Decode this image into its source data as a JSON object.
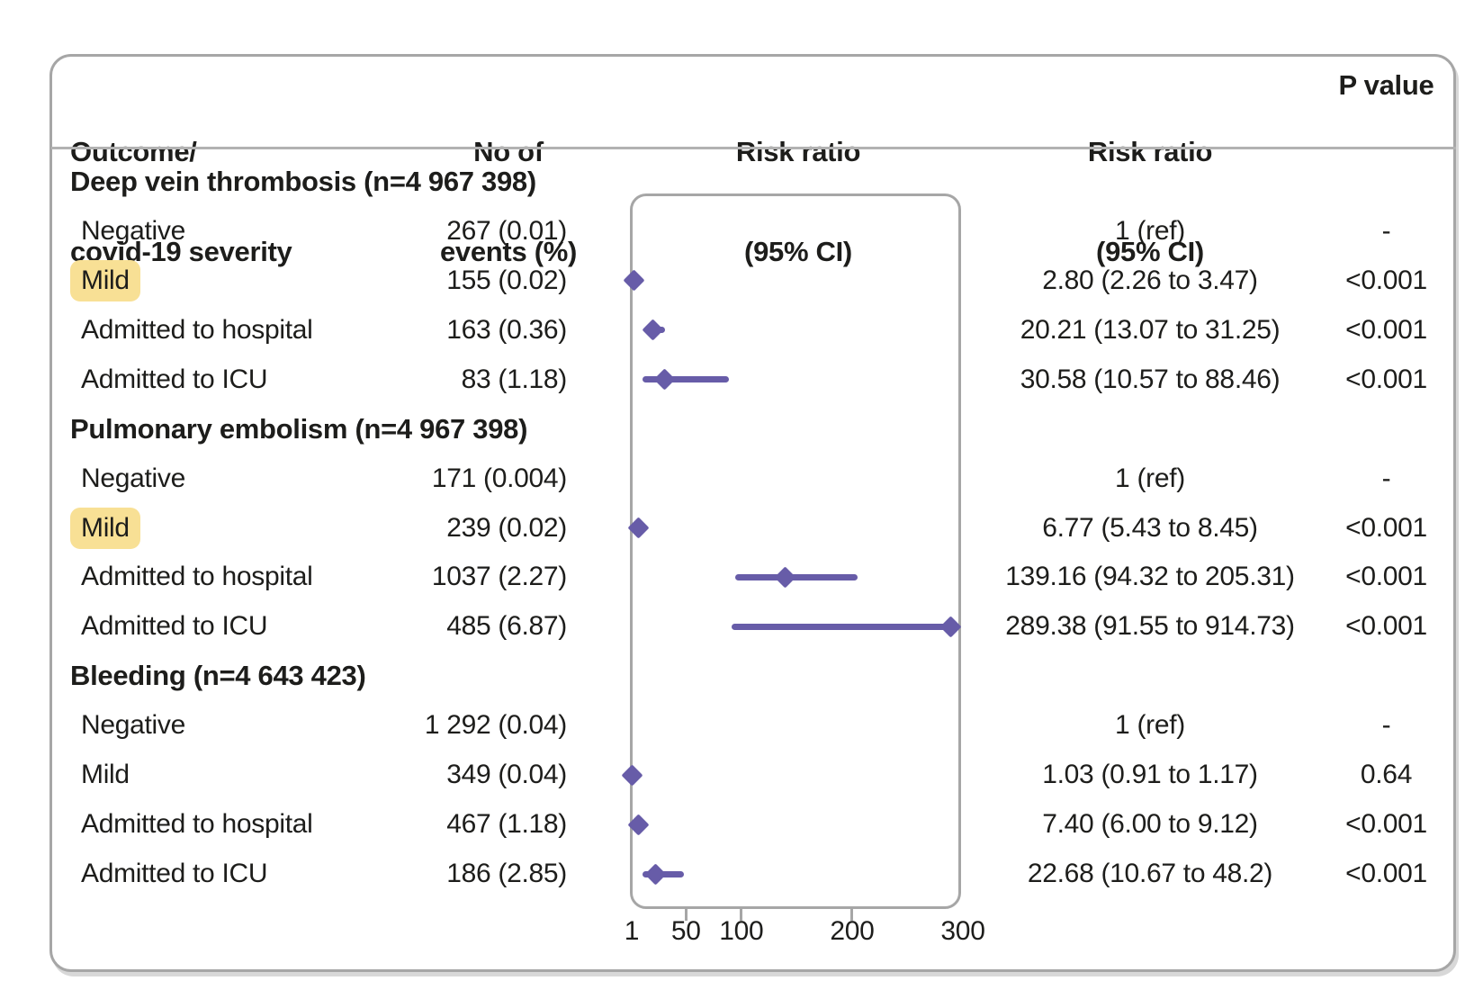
{
  "figure": {
    "background": "#ffffff",
    "box_border_color": "#a6a6a6",
    "text_color": "#1d1d1b"
  },
  "header": {
    "col_outcome": [
      "Outcome/",
      "covid-19 severity"
    ],
    "col_events": [
      "No of",
      "events (%)"
    ],
    "col_plot": [
      "Risk ratio",
      "(95% CI)"
    ],
    "col_rr": [
      "Risk ratio",
      "(95% CI)"
    ],
    "col_p": "P value"
  },
  "chart_data": {
    "type": "forest",
    "xlabel": "",
    "axis": {
      "tick_labels": [
        "1",
        "50",
        "100",
        "200",
        "300"
      ],
      "tick_values": [
        1,
        50,
        100,
        200,
        300
      ],
      "ticks_with_marks": [
        50,
        100,
        200
      ],
      "xmin": 1,
      "xmax": 300,
      "scale": "linear"
    },
    "colors": {
      "marker": "#675ca8",
      "highlight": "#f8e095"
    },
    "groups": [
      {
        "label": "Deep vein thrombosis  (n=4 967 398)",
        "rows": [
          {
            "label": "Negative",
            "highlight": false,
            "events": "267 (0.01)",
            "rr": null,
            "lo": null,
            "hi": null,
            "rr_text": "1 (ref)",
            "p": "-"
          },
          {
            "label": "Mild",
            "highlight": true,
            "events": "155 (0.02)",
            "rr": 2.8,
            "lo": 2.26,
            "hi": 3.47,
            "rr_text": "2.80 (2.26 to 3.47)",
            "p": "<0.001"
          },
          {
            "label": "Admitted to hospital",
            "highlight": false,
            "events": "163 (0.36)",
            "rr": 20.21,
            "lo": 13.07,
            "hi": 31.25,
            "rr_text": "20.21 (13.07 to 31.25)",
            "p": "<0.001"
          },
          {
            "label": "Admitted to ICU",
            "highlight": false,
            "events": "83 (1.18)",
            "rr": 30.58,
            "lo": 10.57,
            "hi": 88.46,
            "rr_text": "30.58 (10.57 to 88.46)",
            "p": "<0.001"
          }
        ]
      },
      {
        "label": "Pulmonary embolism (n=4 967 398)",
        "rows": [
          {
            "label": "Negative",
            "highlight": false,
            "events": "171 (0.004)",
            "rr": null,
            "lo": null,
            "hi": null,
            "rr_text": "1 (ref)",
            "p": "-"
          },
          {
            "label": "Mild",
            "highlight": true,
            "events": "239 (0.02)",
            "rr": 6.77,
            "lo": 5.43,
            "hi": 8.45,
            "rr_text": "6.77 (5.43 to 8.45)",
            "p": "<0.001"
          },
          {
            "label": "Admitted to hospital",
            "highlight": false,
            "events": "1037 (2.27)",
            "rr": 139.16,
            "lo": 94.32,
            "hi": 205.31,
            "rr_text": "139.16 (94.32 to 205.31)",
            "p": "<0.001"
          },
          {
            "label": "Admitted to ICU",
            "highlight": false,
            "events": "485 (6.87)",
            "rr": 289.38,
            "lo": 91.55,
            "hi": 914.73,
            "rr_text": "289.38 (91.55 to 914.73)",
            "p": "<0.001"
          }
        ]
      },
      {
        "label": "Bleeding (n=4 643 423)",
        "rows": [
          {
            "label": "Negative",
            "highlight": false,
            "events": "1 292 (0.04)",
            "rr": null,
            "lo": null,
            "hi": null,
            "rr_text": "1 (ref)",
            "p": "-"
          },
          {
            "label": "Mild",
            "highlight": false,
            "events": "349 (0.04)",
            "rr": 1.03,
            "lo": 0.91,
            "hi": 1.17,
            "rr_text": "1.03 (0.91 to 1.17)",
            "p": "0.64"
          },
          {
            "label": "Admitted to hospital",
            "highlight": false,
            "events": "467 (1.18)",
            "rr": 7.4,
            "lo": 6.0,
            "hi": 9.12,
            "rr_text": "7.40 (6.00 to 9.12)",
            "p": "<0.001"
          },
          {
            "label": "Admitted to ICU",
            "highlight": false,
            "events": "186 (2.85)",
            "rr": 22.68,
            "lo": 10.67,
            "hi": 48.2,
            "rr_text": "22.68 (10.67 to 48.2)",
            "p": "<0.001"
          }
        ]
      }
    ]
  }
}
